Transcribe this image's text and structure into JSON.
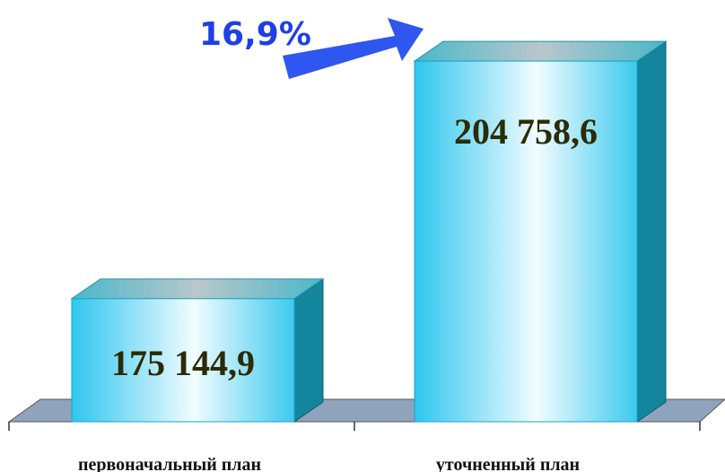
{
  "chart_data": {
    "type": "bar3d",
    "categories": [
      "первоначальный план",
      "уточненный план"
    ],
    "values": [
      175144.9,
      204758.6
    ],
    "value_labels": [
      "175 144,9",
      "204 758,6"
    ],
    "annotation": "16,9%",
    "color": "#33c8ee",
    "ylim": [
      159800,
      207900
    ]
  }
}
